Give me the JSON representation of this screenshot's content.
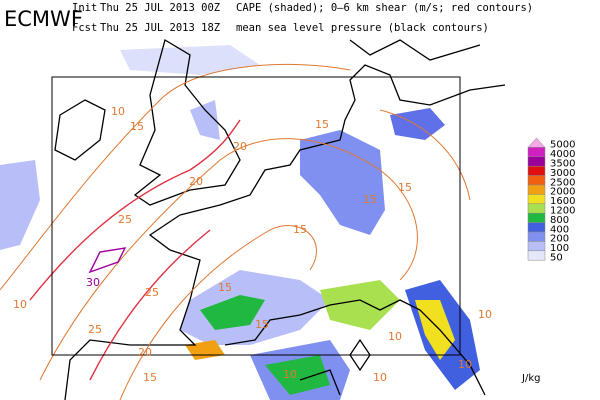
{
  "header": {
    "logo": "ECMWF",
    "init_label": "Init",
    "init_time": "Thu 25 JUL 2013 00Z",
    "fcst_label": "Fcst",
    "fcst_time": "Thu 25 JUL 2013 18Z",
    "line1": "CAPE (shaded); 0–6 km shear (m/s; red contours)",
    "line2": "mean sea level pressure (black contours)"
  },
  "legend": {
    "levels": [
      5000,
      4000,
      3500,
      3000,
      2500,
      2000,
      1600,
      1200,
      800,
      400,
      200,
      100,
      50
    ],
    "colors": [
      "#f4a8e8",
      "#d020c0",
      "#9a009a",
      "#e01010",
      "#f06010",
      "#f0a010",
      "#f0e020",
      "#a8e050",
      "#20b840",
      "#4060e0",
      "#8090f0",
      "#b8bff8",
      "#e4e6fa"
    ],
    "unit": "J/kg"
  },
  "contour_labels": [
    "10",
    "15",
    "15",
    "20",
    "20",
    "25",
    "15",
    "15",
    "15",
    "30",
    "25",
    "10",
    "25",
    "20",
    "15",
    "15",
    "15",
    "10",
    "10",
    "10",
    "10",
    "10"
  ]
}
